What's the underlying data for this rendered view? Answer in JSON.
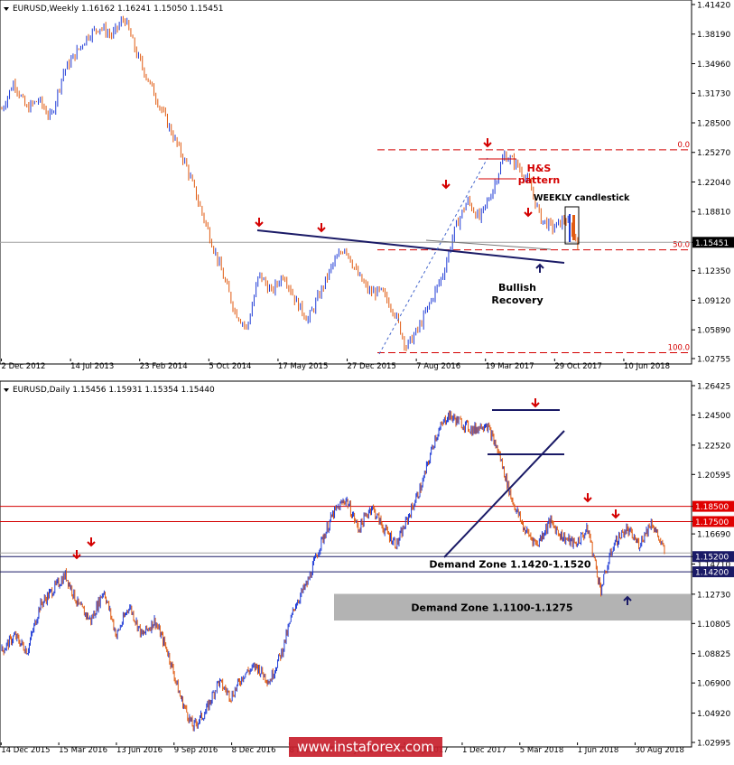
{
  "watermark": "www.instaforex.com",
  "colors": {
    "bull": "#1f3bd6",
    "bear": "#e05a10",
    "trend": "#1a1a66",
    "fib": "#d40000",
    "red_level": "#d40000",
    "navy_level": "#1a1a66",
    "zone_fill": "#9a9a9a",
    "price_tag": "#1a1a66",
    "resistance_tag": "#e00000"
  },
  "chart_data": [
    {
      "type": "candlestick",
      "header": "EURUSD,Weekly  1.16162 1.16241 1.15050 1.15451",
      "ylim": [
        1.02755,
        1.4142
      ],
      "y_ticks": [
        "1.41420",
        "1.38190",
        "1.34960",
        "1.31730",
        "1.28500",
        "1.25270",
        "1.22040",
        "1.18810",
        "1.15451",
        "1.12350",
        "1.09120",
        "1.05890",
        "1.02755"
      ],
      "x_ticks": [
        "2 Dec 2012",
        "14 Jul 2013",
        "23 Feb 2014",
        "5 Oct 2014",
        "17 May 2015",
        "27 Dec 2015",
        "7 Aug 2016",
        "19 Mar 2017",
        "29 Oct 2017",
        "10 Jun 2018"
      ],
      "series_path": [
        1.3,
        1.33,
        1.3,
        1.31,
        1.29,
        1.34,
        1.36,
        1.38,
        1.39,
        1.38,
        1.4,
        1.36,
        1.33,
        1.3,
        1.27,
        1.24,
        1.2,
        1.16,
        1.12,
        1.08,
        1.06,
        1.12,
        1.1,
        1.12,
        1.09,
        1.07,
        1.1,
        1.13,
        1.15,
        1.12,
        1.1,
        1.1,
        1.08,
        1.04,
        1.06,
        1.09,
        1.12,
        1.17,
        1.2,
        1.18,
        1.21,
        1.25,
        1.24,
        1.22,
        1.18,
        1.17,
        1.18,
        1.155
      ],
      "current_price": "1.15451",
      "fib_levels": [
        {
          "label": "0.0",
          "price": 1.2555
        },
        {
          "label": "50.0",
          "price": 1.1463
        },
        {
          "label": "100.0",
          "price": 1.034
        }
      ],
      "annotations": {
        "hs": "H&S\npattern",
        "weekly": "WEEKLY candlestick",
        "bullish": "Bullish\nRecovery"
      }
    },
    {
      "type": "candlestick",
      "header": "EURUSD,Daily  1.15456 1.15931 1.15354 1.15440",
      "ylim": [
        1.02995,
        1.26425
      ],
      "y_ticks": [
        "1.26425",
        "1.24500",
        "1.22520",
        "1.20595",
        "1.18500",
        "1.17500",
        "1.16690",
        "1.15200",
        "1.14710",
        "1.14200",
        "1.12730",
        "1.10805",
        "1.08825",
        "1.06900",
        "1.04920",
        "1.02995"
      ],
      "x_ticks": [
        "14 Dec 2015",
        "15 Mar 2016",
        "13 Jun 2016",
        "9 Sep 2016",
        "8 Dec 2016",
        "8 Mar 2017",
        "6 Jun 2017",
        "4 Sep 2017",
        "1 Dec 2017",
        "5 Mar 2018",
        "1 Jun 2018",
        "30 Aug 2018"
      ],
      "series_path": [
        1.09,
        1.1,
        1.09,
        1.12,
        1.13,
        1.14,
        1.12,
        1.11,
        1.13,
        1.1,
        1.12,
        1.1,
        1.11,
        1.09,
        1.06,
        1.04,
        1.05,
        1.07,
        1.06,
        1.075,
        1.08,
        1.07,
        1.09,
        1.12,
        1.135,
        1.16,
        1.18,
        1.19,
        1.17,
        1.185,
        1.17,
        1.16,
        1.18,
        1.2,
        1.23,
        1.245,
        1.24,
        1.235,
        1.24,
        1.22,
        1.19,
        1.17,
        1.16,
        1.175,
        1.165,
        1.16,
        1.17,
        1.13,
        1.16,
        1.17,
        1.16,
        1.175,
        1.155
      ],
      "resistance_levels": [
        "1.18500",
        "1.17500"
      ],
      "demand_levels": [
        "1.15200",
        "1.14200"
      ],
      "current_price": "1.15440",
      "zones": {
        "zone1": "Demand Zone 1.1420-1.1520",
        "zone2": "Demand Zone 1.1100-1.1275"
      }
    }
  ]
}
